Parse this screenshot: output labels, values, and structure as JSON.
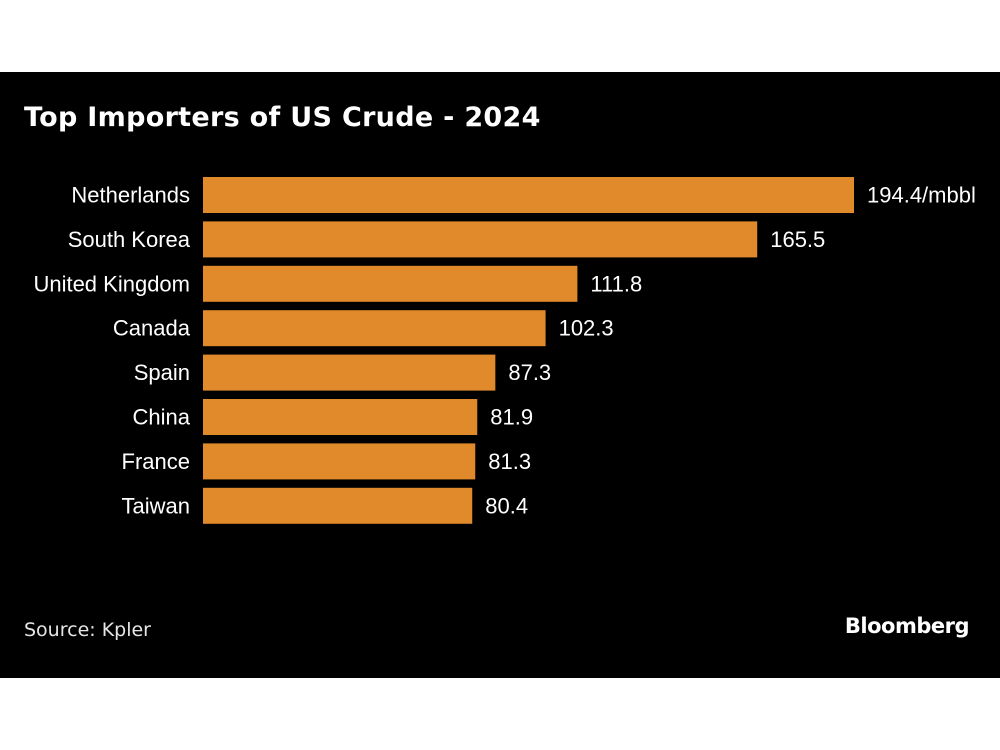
{
  "chart_data": {
    "type": "bar",
    "orientation": "horizontal",
    "title": "Top Importers of US Crude - 2024",
    "categories": [
      "Netherlands",
      "South Korea",
      "United Kingdom",
      "Canada",
      "Spain",
      "China",
      "France",
      "Taiwan"
    ],
    "values": [
      194.4,
      165.5,
      111.8,
      102.3,
      87.3,
      81.9,
      81.3,
      80.4
    ],
    "data_labels": [
      "194.4/mbbl",
      "165.5",
      "111.8",
      "102.3",
      "87.3",
      "81.9",
      "81.3",
      "80.4"
    ],
    "unit": "mbbl",
    "xlim": [
      0,
      194.4
    ],
    "grid": false,
    "legend": "none",
    "bar_color": "#e08a2c",
    "background_color": "#000000"
  },
  "footer": {
    "source": "Source: Kpler",
    "brand": "Bloomberg"
  }
}
